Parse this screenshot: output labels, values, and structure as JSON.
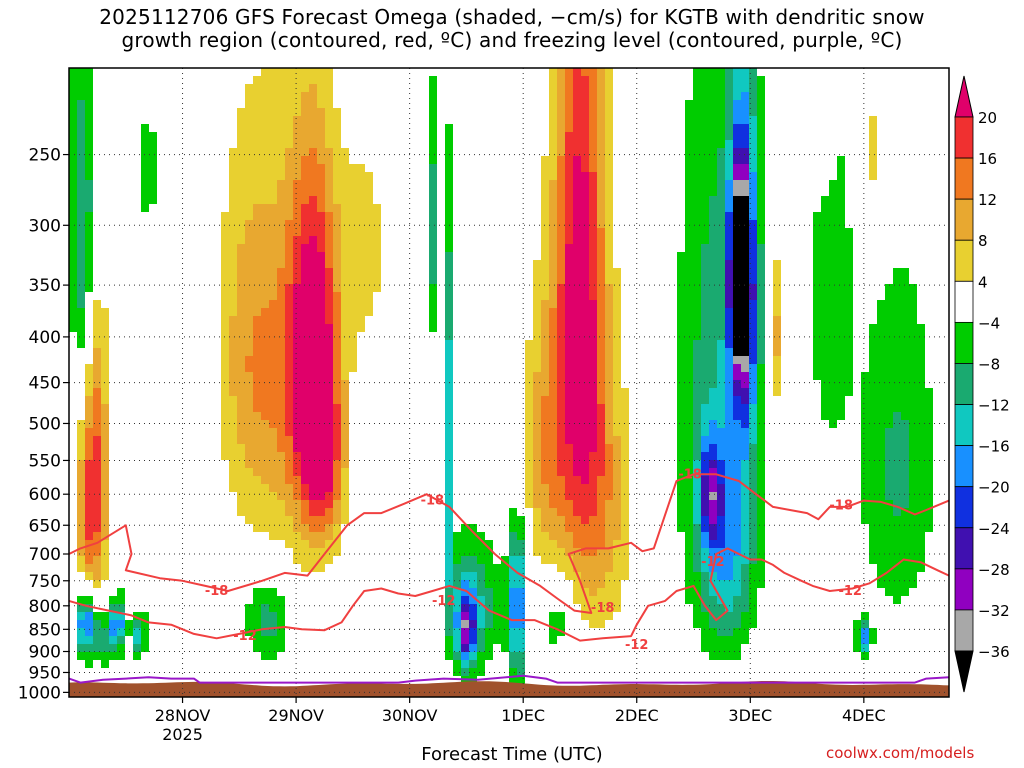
{
  "title_lines": [
    "2025112706 GFS Forecast Omega (shaded, −cm/s) for KGTB with dendritic snow",
    "growth region (contoured, red, ºC) and freezing level (contoured, purple, ºC)"
  ],
  "credit": "coolwx.com/models",
  "chart_data": {
    "type": "heatmap",
    "title": "2025112706 GFS Forecast Omega (shaded, −cm/s) for KGTB with dendritic snow growth region (contoured, red, ºC) and freezing level (contoured, purple, ºC)",
    "xlabel": "Forecast Time (UTC)",
    "ylabel": "",
    "x_ticks": [
      {
        "label": "28NOV",
        "sub": "2025",
        "t": 1.0
      },
      {
        "label": "29NOV",
        "sub": "",
        "t": 2.0
      },
      {
        "label": "30NOV",
        "sub": "",
        "t": 3.0
      },
      {
        "label": "1DEC",
        "sub": "",
        "t": 4.0
      },
      {
        "label": "2DEC",
        "sub": "",
        "t": 5.0
      },
      {
        "label": "3DEC",
        "sub": "",
        "t": 6.0
      },
      {
        "label": "4DEC",
        "sub": "",
        "t": 7.0
      }
    ],
    "x_range": [
      0,
      7.75
    ],
    "y_ticks": [
      250,
      300,
      350,
      400,
      450,
      500,
      550,
      600,
      650,
      700,
      750,
      800,
      850,
      900,
      950,
      1000
    ],
    "y_range_hPa": [
      200,
      1012
    ],
    "y_log": true,
    "grid": true,
    "colorbar": {
      "ticks": [
        "20",
        "16",
        "12",
        "8",
        "4",
        "−4",
        "−8",
        "−12",
        "−16",
        "−20",
        "−24",
        "−28",
        "−32",
        "−36"
      ],
      "levels": [
        20,
        16,
        12,
        8,
        4,
        -4,
        -8,
        -12,
        -16,
        -20,
        -24,
        -28,
        -32,
        -36
      ],
      "colors": [
        "#e0006a",
        "#f03030",
        "#f07820",
        "#e8a830",
        "#e8d030",
        "#ffffff",
        "#00cc00",
        "#1aaa70",
        "#10c8c0",
        "#1890ff",
        "#1030e0",
        "#4010b0",
        "#9000c0",
        "#a8a8a8",
        "#000000"
      ]
    },
    "omega_blobs": [
      {
        "t": 0.12,
        "p": 300,
        "dt": 0.12,
        "dp": 130,
        "v": -10
      },
      {
        "t": 0.2,
        "p": 630,
        "dt": 0.13,
        "dp": 150,
        "v": 14
      },
      {
        "t": 0.25,
        "p": 450,
        "dt": 0.1,
        "dp": 160,
        "v": 7
      },
      {
        "t": 0.15,
        "p": 840,
        "dt": 0.09,
        "dp": 70,
        "v": -18
      },
      {
        "t": 0.42,
        "p": 840,
        "dt": 0.08,
        "dp": 60,
        "v": -16
      },
      {
        "t": 0.62,
        "p": 860,
        "dt": 0.06,
        "dp": 50,
        "v": -12
      },
      {
        "t": 0.3,
        "p": 880,
        "dt": 0.08,
        "dp": 60,
        "v": -6
      },
      {
        "t": 0.7,
        "p": 260,
        "dt": 0.08,
        "dp": 40,
        "v": -6
      },
      {
        "t": 1.6,
        "p": 420,
        "dt": 0.3,
        "dp": 200,
        "v": 8
      },
      {
        "t": 2.15,
        "p": 420,
        "dt": 0.22,
        "dp": 180,
        "v": 20
      },
      {
        "t": 2.25,
        "p": 560,
        "dt": 0.18,
        "dp": 120,
        "v": 10
      },
      {
        "t": 1.95,
        "p": 480,
        "dt": 0.35,
        "dp": 260,
        "v": 5
      },
      {
        "t": 1.75,
        "p": 830,
        "dt": 0.2,
        "dp": 100,
        "v": -8
      },
      {
        "t": 2.6,
        "p": 320,
        "dt": 0.2,
        "dp": 90,
        "v": 5
      },
      {
        "t": 3.35,
        "p": 520,
        "dt": 0.04,
        "dp": 250,
        "v": -12
      },
      {
        "t": 3.55,
        "p": 800,
        "dt": 0.25,
        "dp": 140,
        "v": -10
      },
      {
        "t": 3.5,
        "p": 850,
        "dt": 0.08,
        "dp": 80,
        "v": -18
      },
      {
        "t": 3.95,
        "p": 800,
        "dt": 0.08,
        "dp": 170,
        "v": -16
      },
      {
        "t": 3.2,
        "p": 300,
        "dt": 0.05,
        "dp": 100,
        "v": -8
      },
      {
        "t": 4.5,
        "p": 350,
        "dt": 0.22,
        "dp": 260,
        "v": 18
      },
      {
        "t": 4.2,
        "p": 540,
        "dt": 0.2,
        "dp": 200,
        "v": 8
      },
      {
        "t": 4.65,
        "p": 620,
        "dt": 0.3,
        "dp": 220,
        "v": 9
      },
      {
        "t": 4.3,
        "p": 820,
        "dt": 0.15,
        "dp": 100,
        "v": -6
      },
      {
        "t": 5.7,
        "p": 450,
        "dt": 0.35,
        "dp": 350,
        "v": -8
      },
      {
        "t": 5.95,
        "p": 360,
        "dt": 0.12,
        "dp": 160,
        "v": -20
      },
      {
        "t": 5.9,
        "p": 340,
        "dt": 0.08,
        "dp": 80,
        "v": -26
      },
      {
        "t": 5.8,
        "p": 700,
        "dt": 0.25,
        "dp": 180,
        "v": -10
      },
      {
        "t": 5.65,
        "p": 600,
        "dt": 0.1,
        "dp": 80,
        "v": -14
      },
      {
        "t": 6.65,
        "p": 220,
        "dt": 0.12,
        "dp": 60,
        "v": 6
      },
      {
        "t": 6.25,
        "p": 400,
        "dt": 0.06,
        "dp": 90,
        "v": 8
      },
      {
        "t": 6.7,
        "p": 330,
        "dt": 0.2,
        "dp": 200,
        "v": -6
      },
      {
        "t": 7.3,
        "p": 560,
        "dt": 0.35,
        "dp": 260,
        "v": -7
      },
      {
        "t": 7.0,
        "p": 870,
        "dt": 0.06,
        "dp": 40,
        "v": -14
      },
      {
        "t": 7.1,
        "p": 250,
        "dt": 0.15,
        "dp": 60,
        "v": 5
      }
    ],
    "dgz_label_text": [
      "-18",
      "-12"
    ],
    "dgz_labels": [
      {
        "text": "-18",
        "t": 1.3,
        "p": 770
      },
      {
        "text": "-12",
        "t": 1.55,
        "p": 865
      },
      {
        "text": "-18",
        "t": 3.2,
        "p": 610
      },
      {
        "text": "-12",
        "t": 3.3,
        "p": 790
      },
      {
        "text": "-18",
        "t": 4.7,
        "p": 805
      },
      {
        "text": "-12",
        "t": 5.0,
        "p": 885
      },
      {
        "text": "-18",
        "t": 5.47,
        "p": 570
      },
      {
        "text": "-12",
        "t": 5.67,
        "p": 715
      },
      {
        "text": "-18",
        "t": 6.8,
        "p": 618
      },
      {
        "text": "-12",
        "t": 6.88,
        "p": 770
      }
    ],
    "dgz_minus18": [
      [
        0,
        700
      ],
      [
        0.1,
        690
      ],
      [
        0.25,
        680
      ],
      [
        0.5,
        650
      ],
      [
        0.55,
        700
      ],
      [
        0.5,
        730
      ],
      [
        0.8,
        745
      ],
      [
        1.0,
        750
      ],
      [
        1.2,
        760
      ],
      [
        1.4,
        770
      ],
      [
        1.7,
        750
      ],
      [
        1.9,
        735
      ],
      [
        2.1,
        740
      ],
      [
        2.25,
        700
      ],
      [
        2.45,
        650
      ],
      [
        2.6,
        630
      ],
      [
        2.75,
        630
      ],
      [
        2.95,
        615
      ],
      [
        3.15,
        600
      ],
      [
        3.35,
        620
      ],
      [
        3.55,
        660
      ],
      [
        3.75,
        700
      ],
      [
        3.95,
        735
      ],
      [
        4.15,
        760
      ],
      [
        4.3,
        785
      ],
      [
        4.45,
        810
      ],
      [
        4.6,
        815
      ],
      [
        4.5,
        750
      ],
      [
        4.4,
        700
      ],
      [
        4.55,
        690
      ],
      [
        4.75,
        690
      ],
      [
        4.95,
        680
      ],
      [
        5.05,
        695
      ],
      [
        5.15,
        690
      ],
      [
        5.35,
        580
      ],
      [
        5.5,
        570
      ],
      [
        5.7,
        570
      ],
      [
        5.9,
        580
      ],
      [
        6.05,
        600
      ],
      [
        6.2,
        620
      ],
      [
        6.35,
        625
      ],
      [
        6.5,
        630
      ],
      [
        6.6,
        640
      ],
      [
        6.7,
        620
      ],
      [
        6.85,
        620
      ],
      [
        7.0,
        610
      ],
      [
        7.15,
        612
      ],
      [
        7.3,
        620
      ],
      [
        7.45,
        632
      ],
      [
        7.55,
        625
      ],
      [
        7.75,
        610
      ]
    ],
    "dgz_minus12": [
      [
        0,
        790
      ],
      [
        0.15,
        800
      ],
      [
        0.35,
        810
      ],
      [
        0.55,
        820
      ],
      [
        0.7,
        835
      ],
      [
        0.9,
        840
      ],
      [
        1.1,
        860
      ],
      [
        1.3,
        870
      ],
      [
        1.5,
        860
      ],
      [
        1.7,
        850
      ],
      [
        1.9,
        845
      ],
      [
        2.05,
        850
      ],
      [
        2.25,
        852
      ],
      [
        2.4,
        835
      ],
      [
        2.5,
        800
      ],
      [
        2.6,
        770
      ],
      [
        2.75,
        765
      ],
      [
        2.9,
        775
      ],
      [
        3.05,
        780
      ],
      [
        3.2,
        770
      ],
      [
        3.35,
        760
      ],
      [
        3.5,
        770
      ],
      [
        3.7,
        810
      ],
      [
        3.9,
        830
      ],
      [
        4.1,
        830
      ],
      [
        4.3,
        850
      ],
      [
        4.5,
        875
      ],
      [
        4.7,
        870
      ],
      [
        4.95,
        865
      ],
      [
        5.0,
        840
      ],
      [
        5.1,
        800
      ],
      [
        5.25,
        790
      ],
      [
        5.35,
        770
      ],
      [
        5.5,
        760
      ],
      [
        5.6,
        800
      ],
      [
        5.7,
        830
      ],
      [
        5.8,
        810
      ],
      [
        5.65,
        750
      ],
      [
        5.7,
        700
      ],
      [
        5.8,
        690
      ],
      [
        5.9,
        700
      ],
      [
        6.0,
        710
      ],
      [
        6.1,
        710
      ],
      [
        6.2,
        720
      ],
      [
        6.3,
        735
      ],
      [
        6.45,
        750
      ],
      [
        6.55,
        760
      ],
      [
        6.7,
        770
      ],
      [
        6.9,
        765
      ],
      [
        7.05,
        755
      ],
      [
        7.2,
        735
      ],
      [
        7.35,
        710
      ],
      [
        7.5,
        715
      ],
      [
        7.65,
        730
      ],
      [
        7.75,
        740
      ]
    ],
    "freezing": [
      [
        0,
        965
      ],
      [
        0.1,
        975
      ],
      [
        0.3,
        968
      ],
      [
        0.5,
        965
      ],
      [
        0.7,
        962
      ],
      [
        0.9,
        965
      ],
      [
        1.1,
        965
      ],
      [
        1.15,
        975
      ],
      [
        2.9,
        975
      ],
      [
        3.05,
        970
      ],
      [
        3.3,
        965
      ],
      [
        3.6,
        968
      ],
      [
        4.0,
        958
      ],
      [
        4.2,
        965
      ],
      [
        4.3,
        975
      ],
      [
        7.45,
        975
      ],
      [
        7.55,
        965
      ],
      [
        7.75,
        962
      ]
    ]
  }
}
